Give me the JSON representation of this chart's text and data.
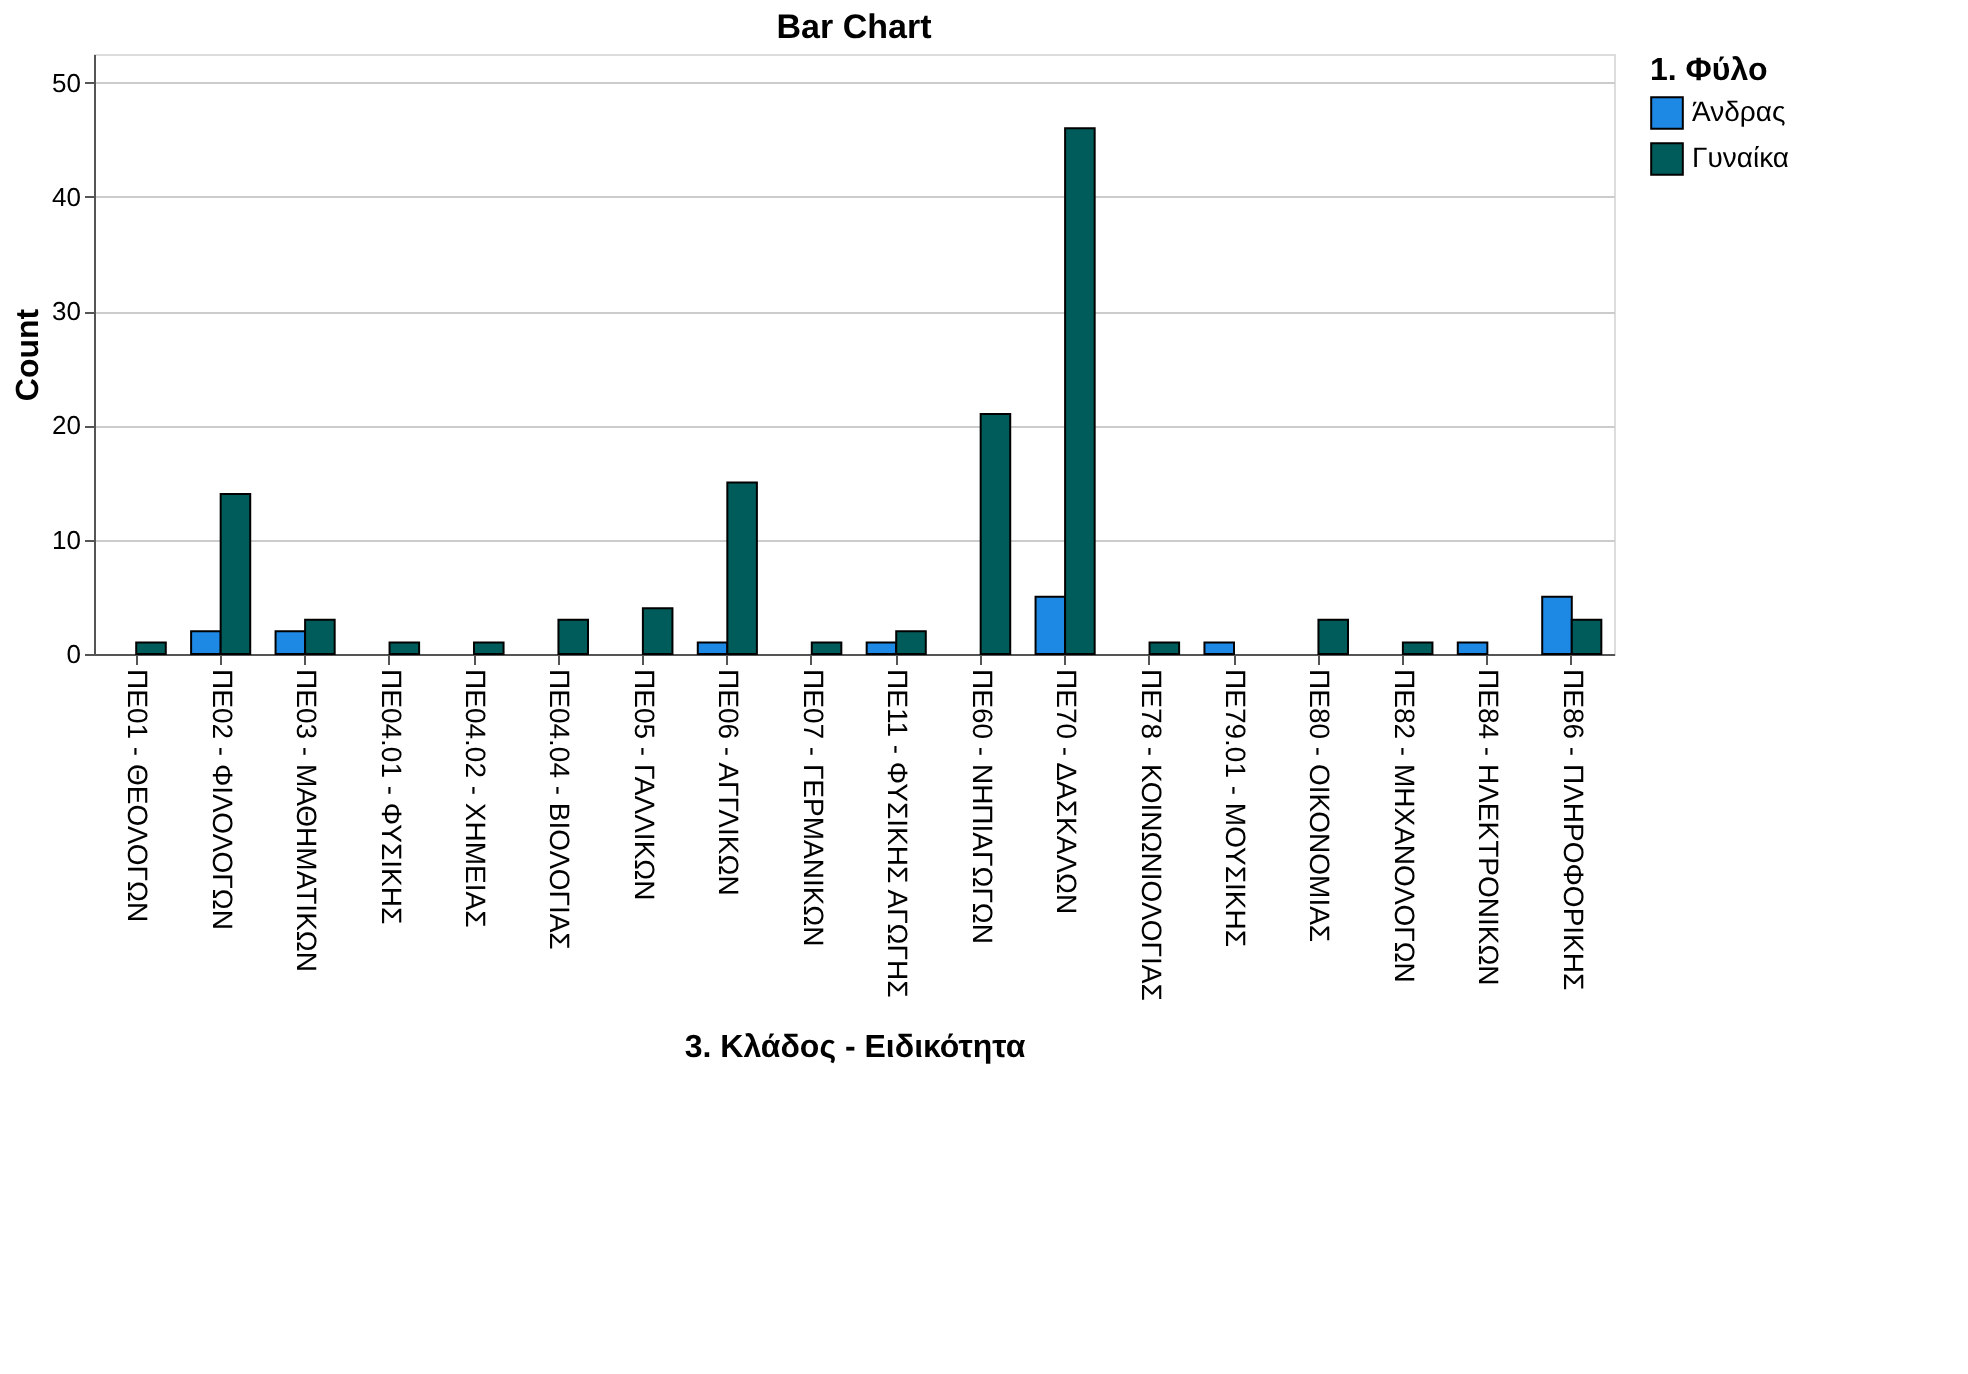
{
  "chart_data": {
    "type": "bar",
    "title": "Bar Chart",
    "xlabel": "3. Κλάδος - Ειδικότητα",
    "ylabel": "Count",
    "legend_title": "1. Φύλο",
    "categories": [
      "ΠΕ01 - ΘΕΟΛΟΓΩΝ",
      "ΠΕ02 - ΦΙΛΟΛΟΓΩΝ",
      "ΠΕ03 - ΜΑΘΗΜΑΤΙΚΩΝ",
      "ΠΕ04.01 - ΦΥΣΙΚΗΣ",
      "ΠΕ04.02 - ΧΗΜΕΙΑΣ",
      "ΠΕ04.04 - ΒΙΟΛΟΓΙΑΣ",
      "ΠΕ05 - ΓΑΛΛΙΚΩΝ",
      "ΠΕ06 - ΑΓΓΛΙΚΩΝ",
      "ΠΕ07 - ΓΕΡΜΑΝΙΚΩΝ",
      "ΠΕ11 - ΦΥΣΙΚΗΣ ΑΓΩΓΗΣ",
      "ΠΕ60 - ΝΗΠΙΑΓΩΓΩΝ",
      "ΠΕ70 - ΔΑΣΚΑΛΩΝ",
      "ΠΕ78 - ΚΟΙΝΩΝΙΟΛΟΓΙΑΣ",
      "ΠΕ79.01 - ΜΟΥΣΙΚΗΣ",
      "ΠΕ80 - ΟΙΚΟΝΟΜΙΑΣ",
      "ΠΕ82 - ΜΗΧΑΝΟΛΟΓΩΝ",
      "ΠΕ84 - ΗΛΕΚΤΡΟΝΙΚΩΝ",
      "ΠΕ86 - ΠΛΗΡΟΦΟΡΙΚΗΣ"
    ],
    "series": [
      {
        "name": "Άνδρας",
        "color": "#1e88e5",
        "values": [
          null,
          2,
          2,
          null,
          null,
          null,
          null,
          1,
          null,
          1,
          null,
          5,
          null,
          1,
          null,
          null,
          1,
          5
        ]
      },
      {
        "name": "Γυναίκα",
        "color": "#005c5a",
        "values": [
          1,
          14,
          3,
          1,
          1,
          3,
          4,
          15,
          1,
          2,
          21,
          46,
          1,
          null,
          3,
          1,
          null,
          3
        ]
      }
    ],
    "ylim": [
      0,
      52.5
    ],
    "yticks": [
      0,
      10,
      20,
      30,
      40,
      50
    ],
    "grid": "y",
    "legend": "top right"
  }
}
